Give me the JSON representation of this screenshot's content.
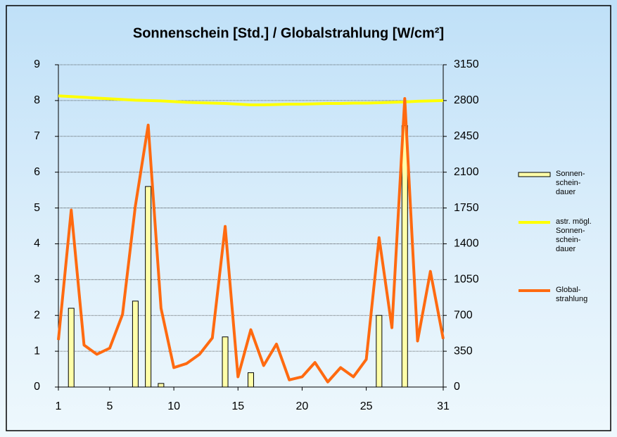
{
  "chart_data": {
    "type": "combo",
    "title": "Sonnenschein [Std.] / Globalstrahlung [W/cm²]",
    "x": [
      1,
      2,
      3,
      4,
      5,
      6,
      7,
      8,
      9,
      10,
      11,
      12,
      13,
      14,
      15,
      16,
      17,
      18,
      19,
      20,
      21,
      22,
      23,
      24,
      25,
      26,
      27,
      28,
      29,
      30,
      31
    ],
    "xlim": [
      1,
      31
    ],
    "xticks": [
      1,
      5,
      10,
      15,
      20,
      25,
      31
    ],
    "ylim": [
      0,
      9
    ],
    "yticks": [
      0,
      1,
      2,
      3,
      4,
      5,
      6,
      7,
      8,
      9
    ],
    "y2lim": [
      0,
      3150
    ],
    "y2ticks": [
      0,
      350,
      700,
      1050,
      1400,
      1750,
      2100,
      2450,
      2800,
      3150
    ],
    "grid": true,
    "legend": "right",
    "series": [
      {
        "name": "Sonnen-\nschein-\ndauer",
        "type": "bar",
        "color": "#ffffa8",
        "values": [
          0,
          2.2,
          0,
          0,
          0,
          0,
          2.4,
          5.6,
          0.1,
          0,
          0,
          0,
          0,
          1.4,
          0,
          0.4,
          0,
          0,
          0,
          0,
          0,
          0,
          0,
          0,
          0,
          2.0,
          0,
          7.3,
          0,
          0,
          0
        ]
      },
      {
        "name": "astr. mögl.\nSonnen-\nschein-\ndauer",
        "type": "line",
        "color": "#ffff00",
        "values": [
          8.13,
          8.11,
          8.09,
          8.07,
          8.05,
          8.03,
          8.01,
          8.0,
          7.99,
          7.97,
          7.95,
          7.94,
          7.93,
          7.92,
          7.9,
          7.88,
          7.88,
          7.89,
          7.9,
          7.9,
          7.91,
          7.92,
          7.92,
          7.93,
          7.93,
          7.94,
          7.95,
          7.96,
          7.98,
          7.99,
          8.0
        ]
      },
      {
        "name": "Global-\nstrahlung",
        "type": "line",
        "color": "#ff6a10",
        "axis": "y2",
        "values": [
          460,
          1730,
          410,
          320,
          380,
          710,
          1770,
          2560,
          770,
          190,
          230,
          320,
          480,
          1570,
          100,
          560,
          210,
          420,
          70,
          100,
          240,
          50,
          190,
          100,
          270,
          1460,
          580,
          2820,
          450,
          1130,
          470
        ]
      }
    ]
  }
}
